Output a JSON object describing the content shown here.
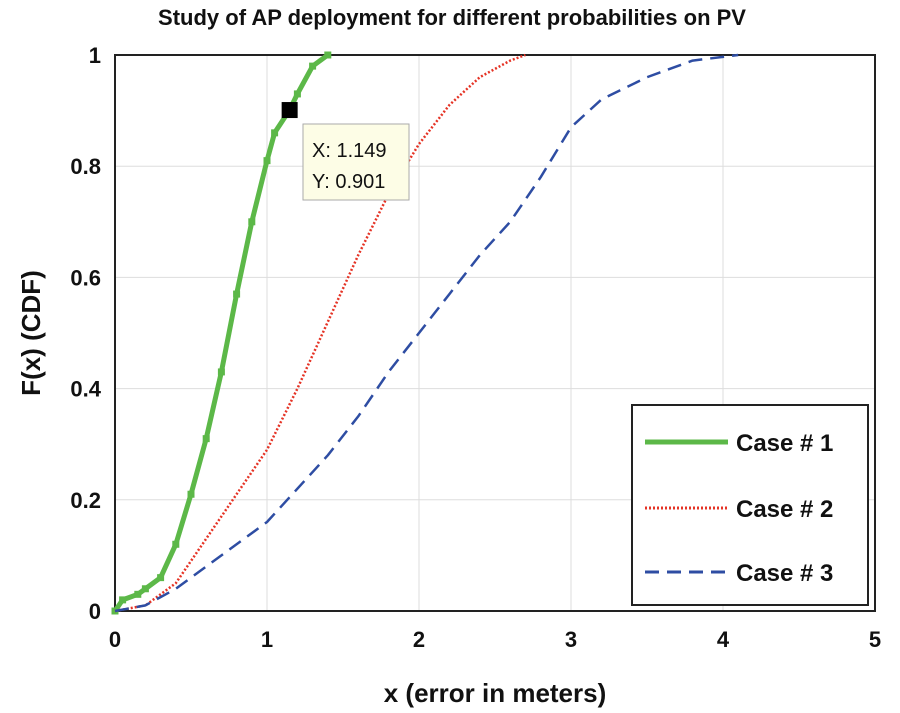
{
  "chart_data": {
    "type": "line",
    "title": "Study of AP deployment for different probabilities on PV",
    "xlabel": "x (error in meters)",
    "ylabel": "F(x)   (CDF)",
    "xlim": [
      0,
      5
    ],
    "ylim": [
      0,
      1
    ],
    "xticks": [
      "0",
      "1",
      "2",
      "3",
      "4",
      "5"
    ],
    "yticks": [
      "0",
      "0.2",
      "0.4",
      "0.6",
      "0.8",
      "1"
    ],
    "grid": true,
    "legend_position": "bottom-right",
    "series": [
      {
        "name": "Case # 1",
        "color": "#5cb848",
        "style": "solid-markers",
        "x": [
          0.0,
          0.05,
          0.15,
          0.2,
          0.3,
          0.4,
          0.5,
          0.6,
          0.7,
          0.8,
          0.9,
          1.0,
          1.05,
          1.149,
          1.2,
          1.3,
          1.4
        ],
        "y": [
          0.0,
          0.02,
          0.03,
          0.04,
          0.06,
          0.12,
          0.21,
          0.31,
          0.43,
          0.57,
          0.7,
          0.81,
          0.86,
          0.901,
          0.93,
          0.98,
          1.0
        ]
      },
      {
        "name": "Case # 2",
        "color": "#e53325",
        "style": "dotted",
        "x": [
          0.0,
          0.2,
          0.4,
          0.6,
          0.8,
          1.0,
          1.2,
          1.4,
          1.6,
          1.8,
          2.0,
          2.2,
          2.4,
          2.6,
          2.7
        ],
        "y": [
          0.0,
          0.01,
          0.05,
          0.13,
          0.21,
          0.29,
          0.4,
          0.52,
          0.64,
          0.75,
          0.84,
          0.91,
          0.96,
          0.99,
          1.0
        ]
      },
      {
        "name": "Case # 3",
        "color": "#2e4da3",
        "style": "dashed",
        "x": [
          0.0,
          0.2,
          0.4,
          0.6,
          0.8,
          1.0,
          1.2,
          1.4,
          1.6,
          1.8,
          2.0,
          2.2,
          2.4,
          2.6,
          2.8,
          3.0,
          3.2,
          3.5,
          3.8,
          4.1
        ],
        "y": [
          0.0,
          0.01,
          0.04,
          0.08,
          0.12,
          0.16,
          0.22,
          0.28,
          0.35,
          0.43,
          0.5,
          0.57,
          0.64,
          0.7,
          0.78,
          0.87,
          0.92,
          0.96,
          0.99,
          1.0
        ]
      }
    ],
    "datatip": {
      "x": 1.149,
      "y": 0.901,
      "x_label": "X: 1.149",
      "y_label": "Y: 0.901"
    }
  },
  "colors": {
    "background": "#ffffff",
    "grid": "#dddddd",
    "axis": "#222222",
    "tip_background": "#fdfde6"
  }
}
